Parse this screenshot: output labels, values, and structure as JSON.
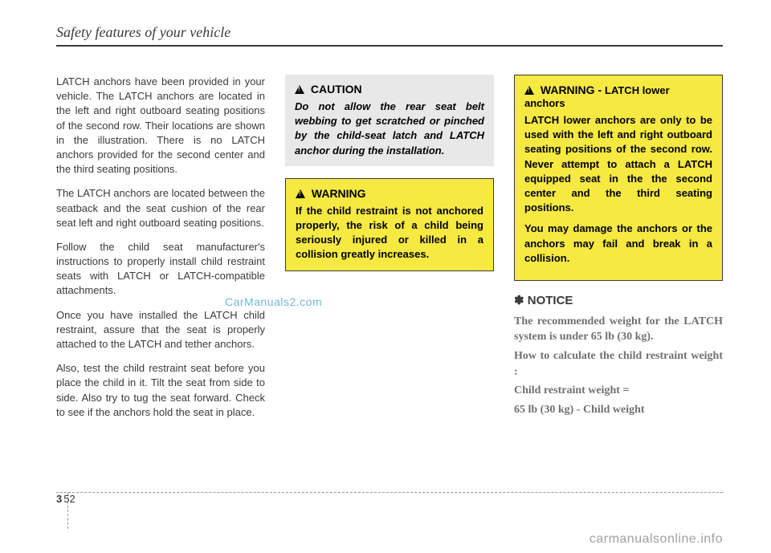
{
  "header": {
    "title": "Safety features of your vehicle"
  },
  "column1": {
    "p1": "LATCH anchors have been provided in your vehicle. The LATCH anchors are located in the left and right outboard seating positions of the second row. Their locations are shown in the illustration. There is no LATCH anchors provided for the second center and the third seating positions.",
    "p2": "The LATCH anchors are located between the seatback and the seat cushion of the rear seat left and right outboard seating positions.",
    "p3": "Follow the child seat manufacturer's instructions to properly install child restraint seats with LATCH or LATCH-compatible attachments.",
    "p4": "Once you have installed the LATCH child restraint, assure that the seat is properly attached to the LATCH and tether anchors.",
    "p5": "Also, test the child restraint seat before you place the child in it. Tilt the seat from side to side. Also try to tug the seat forward. Check to see if the anchors hold the seat in place."
  },
  "column2": {
    "caution": {
      "title": "CAUTION",
      "text": "Do not allow the rear seat belt webbing to get scratched or pinched by the child-seat latch and LATCH anchor during the installation."
    },
    "warning": {
      "title": "WARNING",
      "text": "If the child restraint is not anchored properly, the risk of a child being seriously injured or killed in a collision greatly increases."
    }
  },
  "column3": {
    "warning": {
      "title": "WARNING - ",
      "subtitle": "LATCH lower anchors",
      "p1": "LATCH lower anchors are only to be used with the left and right outboard seating positions of the second row. Never attempt to attach a LATCH equipped seat in the the second center and the third seating positions.",
      "p2": "You may damage the anchors or the anchors may fail and break in a collision."
    },
    "notice": {
      "title": "✽ NOTICE",
      "p1": "The recommended weight for the LATCH system is under 65 lb (30 kg).",
      "p2": "How to calculate the child restraint weight :",
      "p3": "Child restraint weight =",
      "p4": "65 lb (30 kg) - Child weight"
    }
  },
  "watermark": "CarManuals2.com",
  "footerWatermark": "carmanualsonline.info",
  "pageNumber": {
    "chapter": "3",
    "page": "52"
  }
}
